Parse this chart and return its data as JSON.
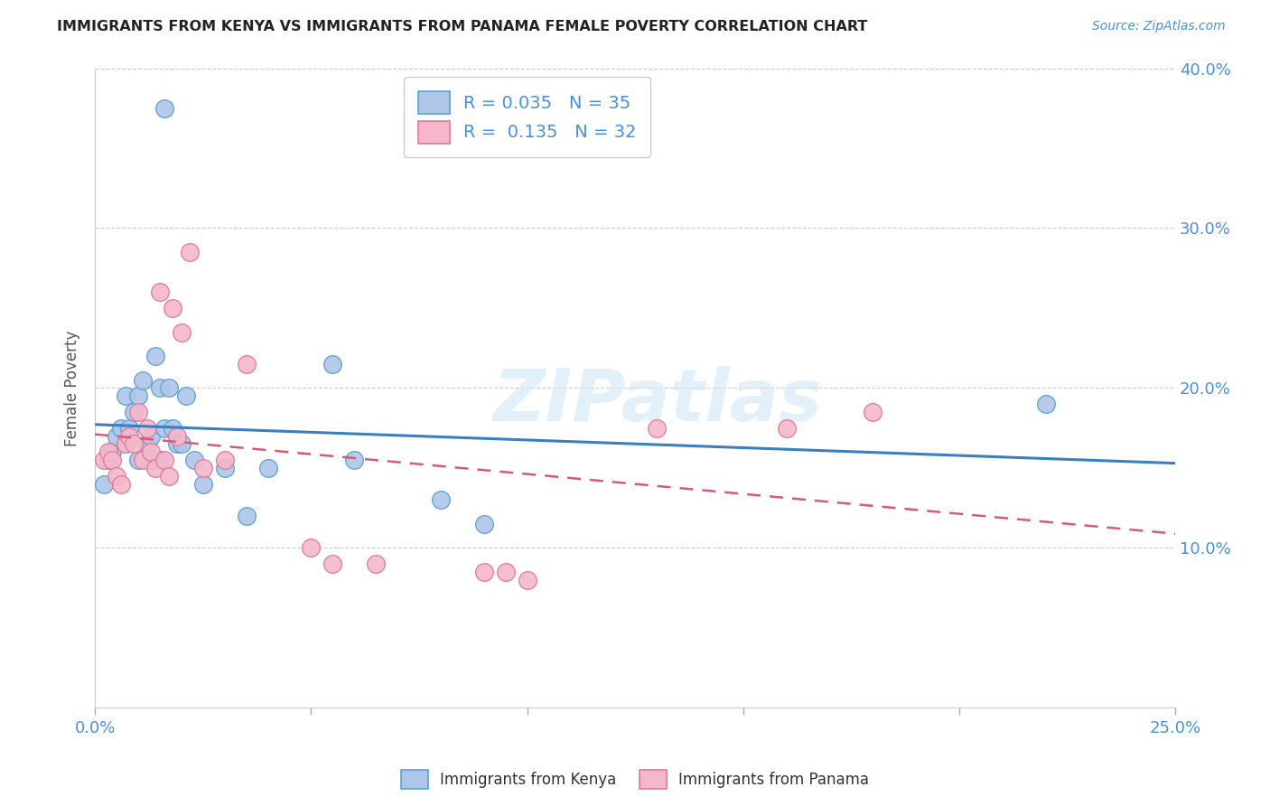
{
  "title": "IMMIGRANTS FROM KENYA VS IMMIGRANTS FROM PANAMA FEMALE POVERTY CORRELATION CHART",
  "source": "Source: ZipAtlas.com",
  "ylabel": "Female Poverty",
  "xlim": [
    0.0,
    0.25
  ],
  "ylim": [
    0.0,
    0.4
  ],
  "xticks": [
    0.0,
    0.05,
    0.1,
    0.15,
    0.2,
    0.25
  ],
  "yticks": [
    0.0,
    0.1,
    0.2,
    0.3,
    0.4
  ],
  "xtick_labels": [
    "0.0%",
    "",
    "",
    "",
    "",
    "25.0%"
  ],
  "ytick_labels_right": [
    "",
    "10.0%",
    "20.0%",
    "30.0%",
    "40.0%"
  ],
  "kenya_color": "#aec6e8",
  "panama_color": "#f5b8cb",
  "kenya_edge": "#5a9fd4",
  "panama_edge": "#e07898",
  "trend_kenya_color": "#3a7fc1",
  "trend_panama_color": "#d45a78",
  "legend_kenya_R": "0.035",
  "legend_kenya_N": "35",
  "legend_panama_R": "0.135",
  "legend_panama_N": "32",
  "watermark": "ZIPatlas",
  "kenya_x": [
    0.002,
    0.003,
    0.004,
    0.005,
    0.006,
    0.007,
    0.007,
    0.008,
    0.009,
    0.01,
    0.01,
    0.011,
    0.012,
    0.013,
    0.013,
    0.014,
    0.015,
    0.015,
    0.016,
    0.017,
    0.018,
    0.019,
    0.02,
    0.021,
    0.023,
    0.025,
    0.03,
    0.035,
    0.04,
    0.055,
    0.06,
    0.08,
    0.09,
    0.22,
    0.016
  ],
  "kenya_y": [
    0.14,
    0.155,
    0.16,
    0.17,
    0.175,
    0.165,
    0.195,
    0.175,
    0.185,
    0.155,
    0.195,
    0.205,
    0.165,
    0.17,
    0.155,
    0.22,
    0.155,
    0.2,
    0.175,
    0.2,
    0.175,
    0.165,
    0.165,
    0.195,
    0.155,
    0.14,
    0.15,
    0.12,
    0.15,
    0.215,
    0.155,
    0.13,
    0.115,
    0.19,
    0.375
  ],
  "panama_x": [
    0.002,
    0.003,
    0.004,
    0.005,
    0.006,
    0.007,
    0.008,
    0.009,
    0.01,
    0.011,
    0.012,
    0.013,
    0.014,
    0.015,
    0.016,
    0.017,
    0.018,
    0.019,
    0.02,
    0.022,
    0.025,
    0.03,
    0.035,
    0.05,
    0.055,
    0.065,
    0.09,
    0.095,
    0.1,
    0.13,
    0.16,
    0.18
  ],
  "panama_y": [
    0.155,
    0.16,
    0.155,
    0.145,
    0.14,
    0.165,
    0.17,
    0.165,
    0.185,
    0.155,
    0.175,
    0.16,
    0.15,
    0.26,
    0.155,
    0.145,
    0.25,
    0.17,
    0.235,
    0.285,
    0.15,
    0.155,
    0.215,
    0.1,
    0.09,
    0.09,
    0.085,
    0.085,
    0.08,
    0.175,
    0.175,
    0.185
  ]
}
